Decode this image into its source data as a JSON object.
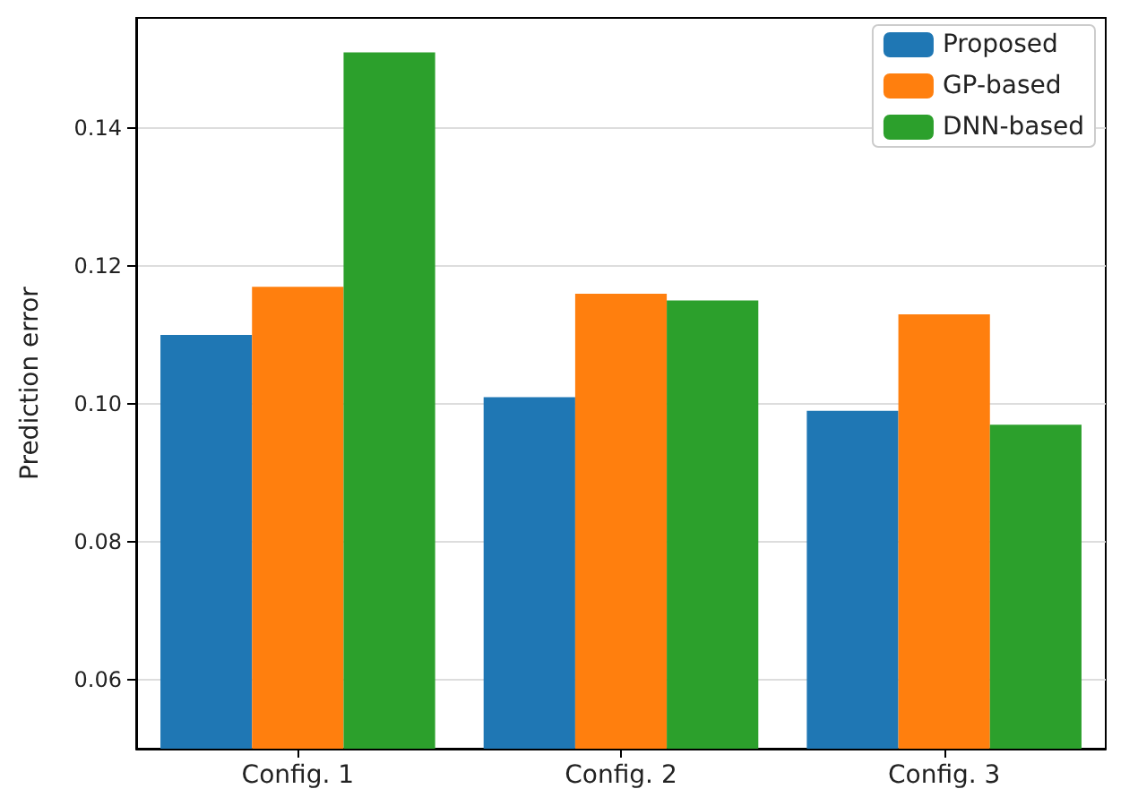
{
  "chart_data": {
    "type": "bar",
    "ylabel": "Prediction error",
    "categories": [
      "Config. 1",
      "Config. 2",
      "Config. 3"
    ],
    "series": [
      {
        "name": "Proposed",
        "color": "#1f77b4",
        "values": [
          0.11,
          0.101,
          0.099
        ]
      },
      {
        "name": "GP-based",
        "color": "#ff7f0e",
        "values": [
          0.117,
          0.116,
          0.113
        ]
      },
      {
        "name": "DNN-based",
        "color": "#2ca02c",
        "values": [
          0.151,
          0.115,
          0.097
        ]
      }
    ],
    "ylim": [
      0.05,
      0.156
    ],
    "yticks": [
      0.06,
      0.08,
      {
        "value": 0.1,
        "label": "0.10"
      },
      0.12,
      0.14
    ],
    "grid": "y",
    "legend": "top right"
  }
}
